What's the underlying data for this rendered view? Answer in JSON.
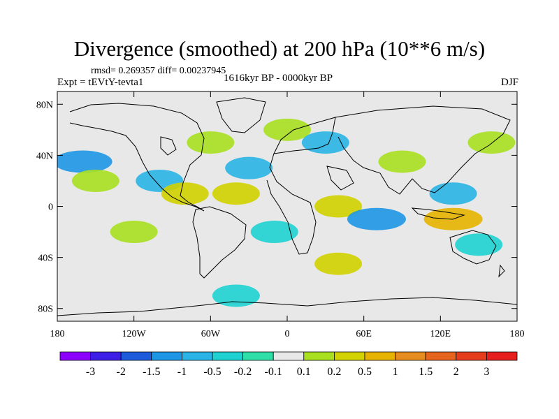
{
  "title": "Divergence (smoothed) at 200 hPa (10**6 m/s)",
  "stats": "rmsd= 0.269357 diff= 0.00237945",
  "experiment": "Expt = tEVtY-tevta1",
  "period": "1616kyr BP - 0000kyr BP",
  "season": "DJF",
  "axes": {
    "lat_ticks": [
      {
        "value": 80,
        "label": "80N"
      },
      {
        "value": 40,
        "label": "40N"
      },
      {
        "value": 0,
        "label": "0"
      },
      {
        "value": -40,
        "label": "40S"
      },
      {
        "value": -80,
        "label": "80S"
      }
    ],
    "lon_ticks": [
      {
        "value": -180,
        "label": "180"
      },
      {
        "value": -120,
        "label": "120W"
      },
      {
        "value": -60,
        "label": "60W"
      },
      {
        "value": 0,
        "label": "0"
      },
      {
        "value": 60,
        "label": "60E"
      },
      {
        "value": 120,
        "label": "120E"
      },
      {
        "value": 180,
        "label": "180"
      }
    ],
    "lat_range": [
      -90,
      90
    ],
    "lon_range": [
      -180,
      180
    ]
  },
  "legend": {
    "colors": [
      "#8b00ff",
      "#3c1ee6",
      "#1e5adc",
      "#1e96e6",
      "#2ab4e6",
      "#1ed2d2",
      "#2ee0a8",
      "#e8e8e8",
      "#a8e020",
      "#d2d200",
      "#e6b400",
      "#e68c1e",
      "#e6641e",
      "#e63c1e",
      "#e61e1e"
    ],
    "labels": [
      "-3",
      "-2",
      "-1.5",
      "-1",
      "-0.5",
      "-0.2",
      "-0.1",
      "0.1",
      "0.2",
      "0.5",
      "1",
      "1.5",
      "2",
      "3"
    ]
  },
  "field_features": [
    {
      "lon": -160,
      "lat": 35,
      "value": -1.0
    },
    {
      "lon": -150,
      "lat": 20,
      "value": 0.2
    },
    {
      "lon": -100,
      "lat": 20,
      "value": -0.5
    },
    {
      "lon": -80,
      "lat": 10,
      "value": 0.5
    },
    {
      "lon": -40,
      "lat": 10,
      "value": 0.5
    },
    {
      "lon": -60,
      "lat": 50,
      "value": 0.2
    },
    {
      "lon": -30,
      "lat": 30,
      "value": -0.5
    },
    {
      "lon": 0,
      "lat": 60,
      "value": 0.2
    },
    {
      "lon": 30,
      "lat": 50,
      "value": -0.5
    },
    {
      "lon": 40,
      "lat": 0,
      "value": 0.5
    },
    {
      "lon": 70,
      "lat": -10,
      "value": -1.0
    },
    {
      "lon": 90,
      "lat": 35,
      "value": 0.2
    },
    {
      "lon": 130,
      "lat": 10,
      "value": -0.5
    },
    {
      "lon": 130,
      "lat": -10,
      "value": 1.0
    },
    {
      "lon": 160,
      "lat": 50,
      "value": 0.2
    },
    {
      "lon": -120,
      "lat": -20,
      "value": 0.2
    },
    {
      "lon": -10,
      "lat": -20,
      "value": -0.2
    },
    {
      "lon": 40,
      "lat": -45,
      "value": 0.5
    },
    {
      "lon": 150,
      "lat": -30,
      "value": -0.2
    },
    {
      "lon": -40,
      "lat": -70,
      "value": -0.2
    }
  ]
}
